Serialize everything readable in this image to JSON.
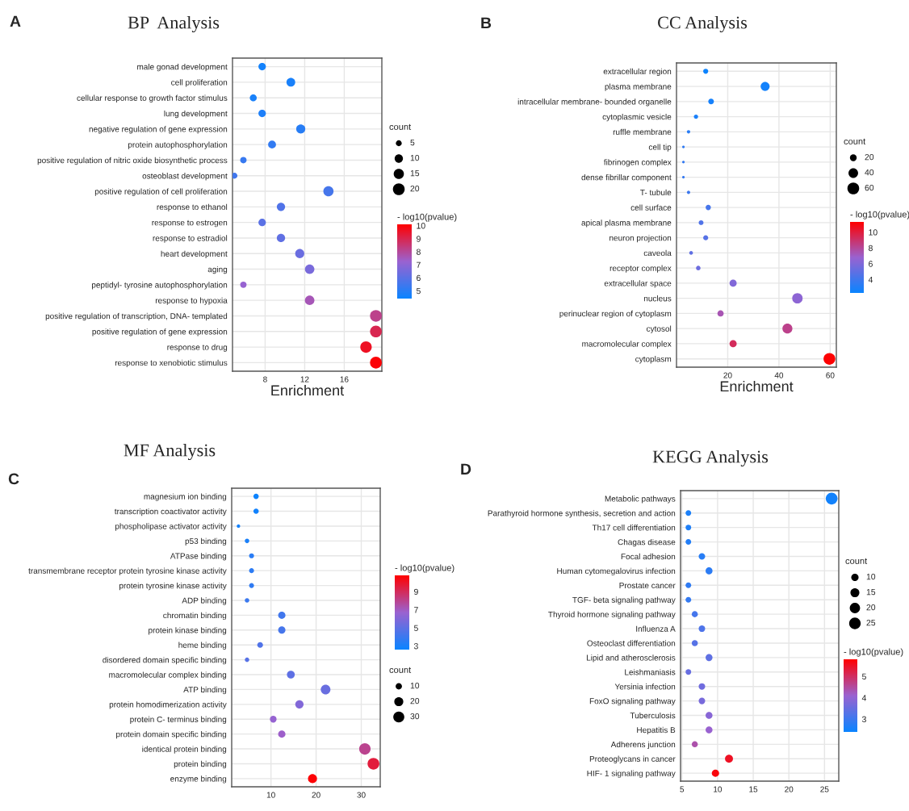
{
  "chart_data": [
    {
      "type": "bubble",
      "orientation": "horizontal",
      "title": "BP  Analysis",
      "xlabel": "Enrichment",
      "annotations": [
        "A"
      ],
      "categories": [
        "male gonad development",
        "cell proliferation",
        "cellular response to growth factor stimulus",
        "lung development",
        "negative regulation of gene expression",
        "protein autophosphorylation",
        "positive regulation of nitric oxide biosynthetic process",
        "osteoblast development",
        "positive regulation of cell proliferation",
        "response to ethanol",
        "response to estrogen",
        "response to estradiol",
        "heart development",
        "aging",
        "peptidyl- tyrosine autophosphorylation",
        "response to hypoxia",
        "positive regulation of transcription, DNA- templated",
        "positive regulation of gene expression",
        "response to drug",
        "response to xenobiotic stimulus"
      ],
      "values": [
        7.7,
        10.6,
        6.8,
        7.7,
        11.6,
        8.7,
        5.8,
        4.9,
        14.4,
        9.6,
        7.7,
        9.6,
        11.5,
        12.5,
        5.8,
        12.5,
        19.2,
        19.2,
        18.2,
        19.2
      ],
      "sizes": [
        8,
        11,
        7,
        8,
        12,
        9,
        6,
        5,
        15,
        10,
        8,
        10,
        12,
        13,
        6,
        13,
        20,
        20,
        19,
        20
      ],
      "cvalues": [
        4.6,
        4.7,
        4.7,
        4.8,
        5.0,
        5.2,
        5.3,
        5.5,
        5.6,
        5.8,
        6.0,
        6.1,
        6.3,
        6.6,
        7.2,
        7.6,
        8.2,
        9.0,
        9.6,
        10.0
      ],
      "size_legend": [
        5,
        10,
        15,
        20
      ],
      "legend_title": "count",
      "clabel": "- log10(pvalue)",
      "clim": [
        4.4,
        10.1
      ],
      "cticks": [
        5,
        6,
        7,
        8,
        9,
        10
      ],
      "xlim": [
        4.7,
        19.8
      ],
      "xticks": [
        8,
        12,
        16
      ],
      "grid": true
    },
    {
      "type": "bubble",
      "orientation": "horizontal",
      "title": "CC Analysis",
      "xlabel": "Enrichment",
      "annotations": [
        "B"
      ],
      "categories": [
        "extracellular region",
        "plasma membrane",
        "intracellular membrane- bounded organelle",
        "cytoplasmic vesicle",
        "ruffle membrane",
        "cell tip",
        "fibrinogen complex",
        "dense fibrillar component",
        "T- tubule",
        "cell surface",
        "apical plasma membrane",
        "neuron projection",
        "caveola",
        "receptor complex",
        "extracellular space",
        "nucleus",
        "perinuclear region of cytoplasm",
        "cytosol",
        "macromolecular complex",
        "cytoplasm"
      ],
      "values": [
        11.4,
        34.6,
        13.5,
        7.6,
        4.7,
        2.7,
        2.7,
        2.7,
        4.7,
        12.4,
        9.6,
        11.4,
        5.7,
        8.5,
        22.1,
        47.2,
        17.2,
        43.3,
        22.1,
        59.7
      ],
      "sizes": [
        11,
        35,
        14,
        8,
        5,
        3,
        3,
        3,
        5,
        12,
        10,
        11,
        6,
        9,
        22,
        47,
        17,
        43,
        22,
        60
      ],
      "cvalues": [
        2.4,
        2.6,
        2.7,
        2.8,
        3.3,
        3.5,
        3.6,
        3.7,
        3.9,
        4.2,
        4.5,
        4.7,
        5.0,
        5.4,
        6.0,
        6.4,
        7.4,
        8.3,
        9.3,
        11.2
      ],
      "size_legend": [
        20,
        40,
        60
      ],
      "legend_title": "count",
      "clabel": "- log10(pvalue)",
      "clim": [
        2.3,
        11.3
      ],
      "cticks": [
        4,
        6,
        8,
        10
      ],
      "xlim": [
        0,
        62.4
      ],
      "xticks": [
        20,
        40,
        60
      ],
      "grid": true
    },
    {
      "type": "bubble",
      "orientation": "horizontal",
      "title": "MF Analysis",
      "annotations": [
        "C"
      ],
      "categories": [
        "magnesium ion binding",
        "transcription coactivator activity",
        "phospholipase activator activity",
        "p53 binding",
        "ATPase binding",
        "transmembrane receptor protein tyrosine kinase activity",
        "protein tyrosine kinase activity",
        "ADP binding",
        "chromatin binding",
        "protein kinase binding",
        "heme binding",
        "disordered domain specific binding",
        "macromolecular complex binding",
        "ATP binding",
        "protein homodimerization activity",
        "protein C- terminus binding",
        "protein domain specific binding",
        "identical protein binding",
        "protein binding",
        "enzyme binding"
      ],
      "values": [
        6.7,
        6.7,
        2.8,
        4.7,
        5.7,
        5.7,
        5.7,
        4.7,
        12.4,
        12.4,
        7.6,
        4.7,
        14.4,
        22.1,
        16.3,
        10.5,
        12.4,
        30.8,
        32.7,
        19.2
      ],
      "sizes": [
        7,
        7,
        3,
        5,
        6,
        6,
        6,
        5,
        13,
        13,
        8,
        5,
        15,
        23,
        17,
        11,
        13,
        32,
        34,
        20
      ],
      "cvalues": [
        2.7,
        2.8,
        2.9,
        3.1,
        3.5,
        3.6,
        3.7,
        4.0,
        4.2,
        4.3,
        4.6,
        4.8,
        5.0,
        5.3,
        6.0,
        6.6,
        6.8,
        8.0,
        9.6,
        10.7
      ],
      "size_legend": [
        10,
        20,
        30
      ],
      "legend_title": "count",
      "clabel": "- log10(pvalue)",
      "clim": [
        2.6,
        10.8
      ],
      "cticks": [
        3,
        5,
        7,
        9
      ],
      "xlim": [
        1.3,
        34.2
      ],
      "xticks": [
        10,
        20,
        30
      ],
      "grid": true
    },
    {
      "type": "bubble",
      "orientation": "horizontal",
      "title": "KEGG Analysis",
      "annotations": [
        "D"
      ],
      "categories": [
        "Metabolic pathways",
        "Parathyroid hormone synthesis, secretion and action",
        "Th17 cell differentiation",
        "Chagas disease",
        "Focal adhesion",
        "Human cytomegalovirus infection",
        "Prostate cancer",
        "TGF- beta signaling pathway",
        "Thyroid hormone signaling pathway",
        "Influenza A",
        "Osteoclast differentiation",
        "Lipid and atherosclerosis",
        "Leishmaniasis",
        "Yersinia infection",
        "FoxO signaling pathway",
        "Tuberculosis",
        "Hepatitis B",
        "Adherens junction",
        "Proteoglycans in cancer",
        "HIF- 1 signaling pathway"
      ],
      "values": [
        26.0,
        5.9,
        5.9,
        5.9,
        7.8,
        8.8,
        5.9,
        5.9,
        6.8,
        7.8,
        6.8,
        8.8,
        5.9,
        7.8,
        7.8,
        8.8,
        8.8,
        6.8,
        11.6,
        9.7
      ],
      "sizes": [
        26,
        6,
        6,
        6,
        8,
        9,
        6,
        6,
        7,
        8,
        7,
        9,
        6,
        8,
        8,
        9,
        9,
        7,
        12,
        10
      ],
      "cvalues": [
        2.5,
        2.6,
        2.65,
        2.7,
        2.75,
        2.8,
        2.85,
        2.9,
        3.1,
        3.2,
        3.3,
        3.4,
        3.5,
        3.6,
        3.7,
        3.9,
        4.1,
        4.4,
        5.5,
        5.7
      ],
      "size_legend": [
        10,
        15,
        20,
        25
      ],
      "legend_title": "count",
      "clabel": "- log10(pvalue)",
      "clim": [
        2.4,
        5.8
      ],
      "cticks": [
        3,
        4,
        5
      ],
      "xlim": [
        4.8,
        27.0
      ],
      "xticks": [
        5,
        10,
        15,
        20,
        25
      ],
      "grid": true
    }
  ]
}
